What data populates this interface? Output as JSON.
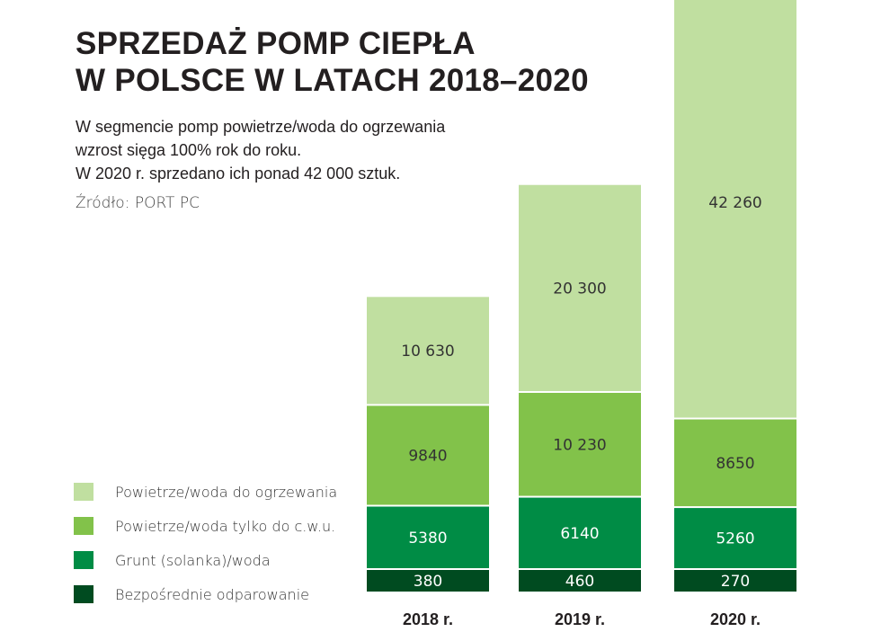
{
  "chart_data": {
    "type": "bar",
    "stacked": true,
    "title": "SPRZEDAŻ POMP CIEPŁA W POLSCE W LATACH 2018–2020",
    "title_lines": [
      "SPRZEDAŻ POMP CIEPŁA",
      "W POLSCE W LATACH 2018–2020"
    ],
    "subtitle_lines": [
      "W segmencie pomp powietrze/woda do ogrzewania",
      "wzrost sięga 100% rok do roku.",
      "W 2020 r. sprzedano ich ponad 42 000 sztuk."
    ],
    "source": "Źródło: PORT PC",
    "categories": [
      "2018 r.",
      "2019 r.",
      "2020 r."
    ],
    "legend_position": "bottom-left",
    "grid": false,
    "series": [
      {
        "name": "Bezpośrednie odparowanie",
        "color": "#004b20",
        "label_color": "#ffffff",
        "values": [
          380,
          460,
          270
        ],
        "labels": [
          "380",
          "460",
          "270"
        ]
      },
      {
        "name": "Grunt (solanka)/woda",
        "color": "#008c45",
        "label_color": "#ffffff",
        "values": [
          5380,
          6140,
          5260
        ],
        "labels": [
          "5380",
          "6140",
          "5260"
        ]
      },
      {
        "name": "Powietrze/woda tylko do c.w.u.",
        "color": "#82c24a",
        "label_color": "#333333",
        "values": [
          9840,
          10230,
          8650
        ],
        "labels": [
          "9840",
          "10 230",
          "8650"
        ]
      },
      {
        "name": "Powietrze/woda do ogrzewania",
        "color": "#c0dfa0",
        "label_color": "#333333",
        "values": [
          10630,
          20300,
          42260
        ],
        "labels": [
          "10 630",
          "20 300",
          "42 260"
        ]
      }
    ]
  }
}
